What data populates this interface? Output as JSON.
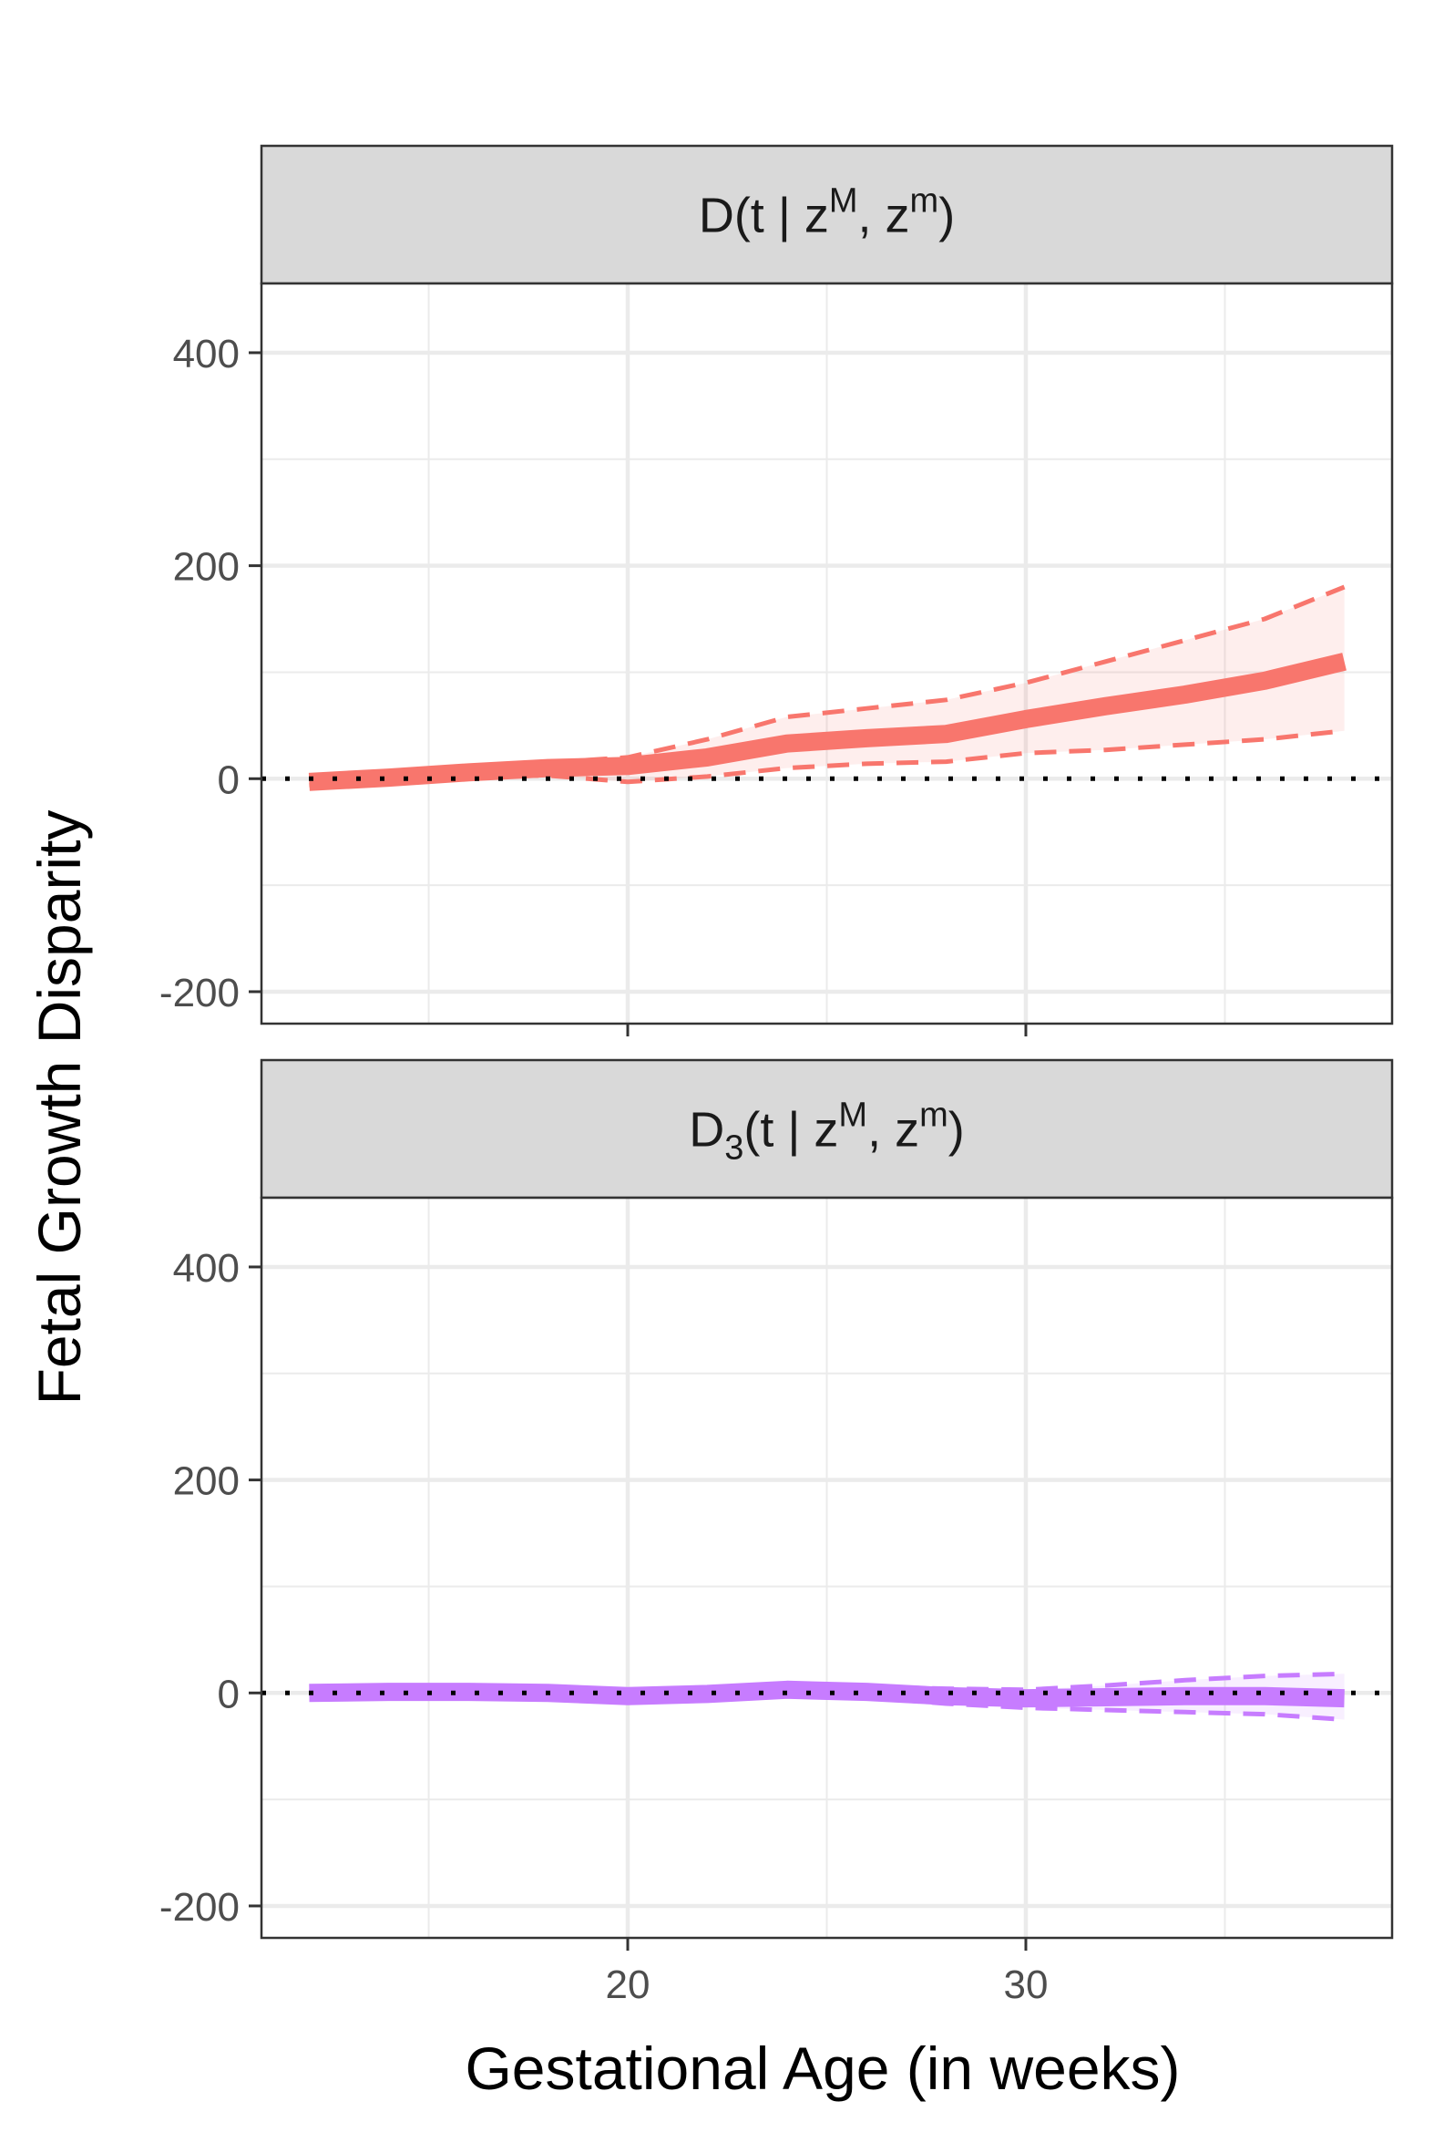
{
  "chart_data": {
    "type": "line",
    "xlabel": "Gestational Age (in weeks)",
    "ylabel": "Fetal Growth Disparity",
    "xlim": [
      10.8,
      39.2
    ],
    "ylim": [
      -230,
      465
    ],
    "x_ticks": [
      20,
      30
    ],
    "y_ticks": [
      -200,
      0,
      200,
      400
    ],
    "x_minor": [
      15,
      25,
      35
    ],
    "y_minor": [
      -100,
      100,
      300
    ],
    "grid": true,
    "reference_line": 0,
    "panels": [
      {
        "strip": {
          "main": "D",
          "sub": "",
          "args": "(t | z",
          "sup1": "M",
          "mid": ",  z",
          "sup2": "m",
          "close": ")"
        },
        "color": "#F8766D",
        "x": [
          12,
          14,
          16,
          18,
          20,
          22,
          24,
          26,
          28,
          30,
          32,
          34,
          36,
          38
        ],
        "estimate": [
          -3,
          1,
          6,
          10,
          12,
          20,
          33,
          38,
          42,
          56,
          68,
          79,
          92,
          110
        ],
        "lower": [
          -6,
          -2,
          2,
          3,
          -3,
          2,
          10,
          14,
          16,
          24,
          27,
          32,
          37,
          45
        ],
        "upper": [
          0,
          4,
          10,
          15,
          20,
          37,
          58,
          66,
          74,
          90,
          110,
          130,
          150,
          180
        ]
      },
      {
        "strip": {
          "main": "D",
          "sub": "3",
          "args": "(t | z",
          "sup1": "M",
          "mid": ",  z",
          "sup2": "m",
          "close": ")"
        },
        "color": "#C77CFF",
        "x": [
          12,
          14,
          16,
          18,
          20,
          22,
          24,
          26,
          28,
          30,
          32,
          34,
          36,
          38
        ],
        "estimate": [
          0,
          1,
          1,
          0,
          -3,
          -1,
          3,
          1,
          -3,
          -5,
          -4,
          -3,
          -3,
          -5
        ],
        "lower": [
          -1,
          -1,
          -1,
          -2,
          -5,
          -3,
          1,
          -4,
          -10,
          -14,
          -16,
          -18,
          -20,
          -25
        ],
        "upper": [
          1,
          2,
          2,
          2,
          -1,
          1,
          5,
          6,
          4,
          3,
          7,
          12,
          16,
          18
        ]
      }
    ]
  }
}
